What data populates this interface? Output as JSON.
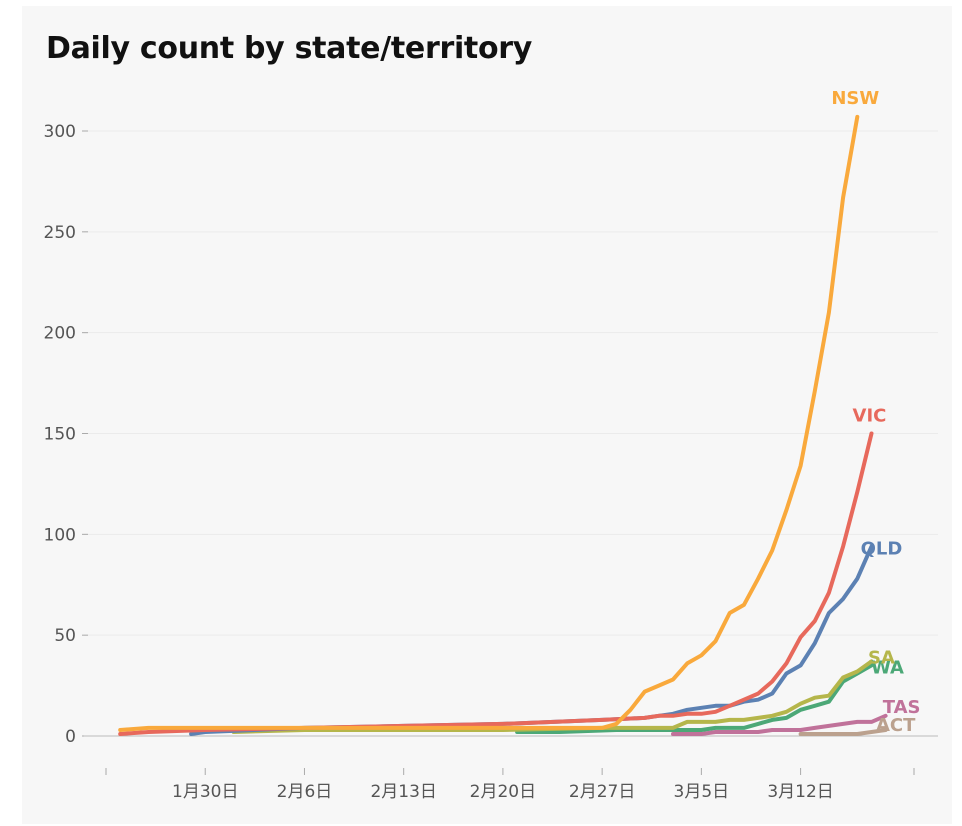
{
  "chart_data": {
    "type": "line",
    "title": "Daily count by state/territory",
    "xlabel": "",
    "ylabel": "",
    "ylim": [
      0,
      310
    ],
    "y_ticks": [
      0,
      50,
      100,
      150,
      200,
      250,
      300
    ],
    "x_ticks": [
      "1月30日",
      "2月6日",
      "2月13日",
      "2月20日",
      "2月27日",
      "3月5日",
      "3月12日"
    ],
    "x_tick_days": [
      29,
      36,
      43,
      50,
      57,
      64,
      71
    ],
    "x_range_days": [
      22,
      79
    ],
    "grid": "horizontal",
    "legend": "end-of-line labels",
    "series": [
      {
        "name": "ACT",
        "color": "#bba18e",
        "points": [
          [
            71,
            1
          ],
          [
            72,
            1
          ],
          [
            73,
            1
          ],
          [
            74,
            1
          ],
          [
            75,
            1
          ],
          [
            76,
            2
          ],
          [
            77,
            3
          ]
        ]
      },
      {
        "name": "TAS",
        "color": "#c0729a",
        "points": [
          [
            62,
            1
          ],
          [
            63,
            1
          ],
          [
            64,
            1
          ],
          [
            65,
            2
          ],
          [
            66,
            2
          ],
          [
            67,
            2
          ],
          [
            68,
            2
          ],
          [
            69,
            3
          ],
          [
            70,
            3
          ],
          [
            71,
            3
          ],
          [
            72,
            4
          ],
          [
            73,
            5
          ],
          [
            74,
            6
          ],
          [
            75,
            7
          ],
          [
            76,
            7
          ],
          [
            77,
            10
          ]
        ]
      },
      {
        "name": "WA",
        "color": "#4ca877",
        "points": [
          [
            51,
            2
          ],
          [
            54,
            2
          ],
          [
            58,
            3
          ],
          [
            61,
            3
          ],
          [
            62,
            3
          ],
          [
            63,
            3
          ],
          [
            64,
            3
          ],
          [
            65,
            4
          ],
          [
            66,
            4
          ],
          [
            67,
            4
          ],
          [
            68,
            6
          ],
          [
            69,
            8
          ],
          [
            70,
            9
          ],
          [
            71,
            13
          ],
          [
            72,
            15
          ],
          [
            73,
            17
          ],
          [
            74,
            27
          ],
          [
            75,
            31
          ],
          [
            76,
            35
          ]
        ]
      },
      {
        "name": "SA",
        "color": "#b5b64b",
        "points": [
          [
            31,
            2
          ],
          [
            36,
            3
          ],
          [
            43,
            3
          ],
          [
            50,
            3
          ],
          [
            57,
            4
          ],
          [
            61,
            4
          ],
          [
            62,
            4
          ],
          [
            63,
            7
          ],
          [
            64,
            7
          ],
          [
            65,
            7
          ],
          [
            66,
            8
          ],
          [
            67,
            8
          ],
          [
            68,
            9
          ],
          [
            69,
            10
          ],
          [
            70,
            12
          ],
          [
            71,
            16
          ],
          [
            72,
            19
          ],
          [
            73,
            20
          ],
          [
            74,
            29
          ],
          [
            75,
            32
          ],
          [
            76,
            37
          ]
        ]
      },
      {
        "name": "QLD",
        "color": "#5c81b3",
        "points": [
          [
            28,
            1
          ],
          [
            29,
            2
          ],
          [
            36,
            4
          ],
          [
            43,
            5
          ],
          [
            50,
            6
          ],
          [
            57,
            8
          ],
          [
            60,
            9
          ],
          [
            61,
            10
          ],
          [
            62,
            11
          ],
          [
            63,
            13
          ],
          [
            64,
            14
          ],
          [
            65,
            15
          ],
          [
            66,
            15
          ],
          [
            67,
            17
          ],
          [
            68,
            18
          ],
          [
            69,
            21
          ],
          [
            70,
            31
          ],
          [
            71,
            35
          ],
          [
            72,
            46
          ],
          [
            73,
            61
          ],
          [
            74,
            68
          ],
          [
            75,
            78
          ],
          [
            76,
            94
          ]
        ]
      },
      {
        "name": "VIC",
        "color": "#e7695c",
        "points": [
          [
            23,
            1
          ],
          [
            25,
            2
          ],
          [
            29,
            3
          ],
          [
            36,
            4
          ],
          [
            43,
            5
          ],
          [
            50,
            6
          ],
          [
            57,
            8
          ],
          [
            60,
            9
          ],
          [
            61,
            10
          ],
          [
            62,
            10
          ],
          [
            63,
            11
          ],
          [
            64,
            11
          ],
          [
            65,
            12
          ],
          [
            66,
            15
          ],
          [
            67,
            18
          ],
          [
            68,
            21
          ],
          [
            69,
            27
          ],
          [
            70,
            36
          ],
          [
            71,
            49
          ],
          [
            72,
            57
          ],
          [
            73,
            71
          ],
          [
            74,
            94
          ],
          [
            75,
            121
          ],
          [
            76,
            150
          ]
        ]
      },
      {
        "name": "NSW",
        "color": "#f9a93c",
        "points": [
          [
            23,
            3
          ],
          [
            25,
            4
          ],
          [
            36,
            4
          ],
          [
            43,
            4
          ],
          [
            50,
            4
          ],
          [
            57,
            4
          ],
          [
            58,
            6
          ],
          [
            59,
            13
          ],
          [
            60,
            22
          ],
          [
            61,
            25
          ],
          [
            62,
            28
          ],
          [
            63,
            36
          ],
          [
            64,
            40
          ],
          [
            65,
            47
          ],
          [
            66,
            61
          ],
          [
            67,
            65
          ],
          [
            68,
            78
          ],
          [
            69,
            92
          ],
          [
            70,
            112
          ],
          [
            71,
            134
          ],
          [
            72,
            171
          ],
          [
            73,
            210
          ],
          [
            74,
            267
          ],
          [
            75,
            307
          ]
        ]
      }
    ]
  }
}
